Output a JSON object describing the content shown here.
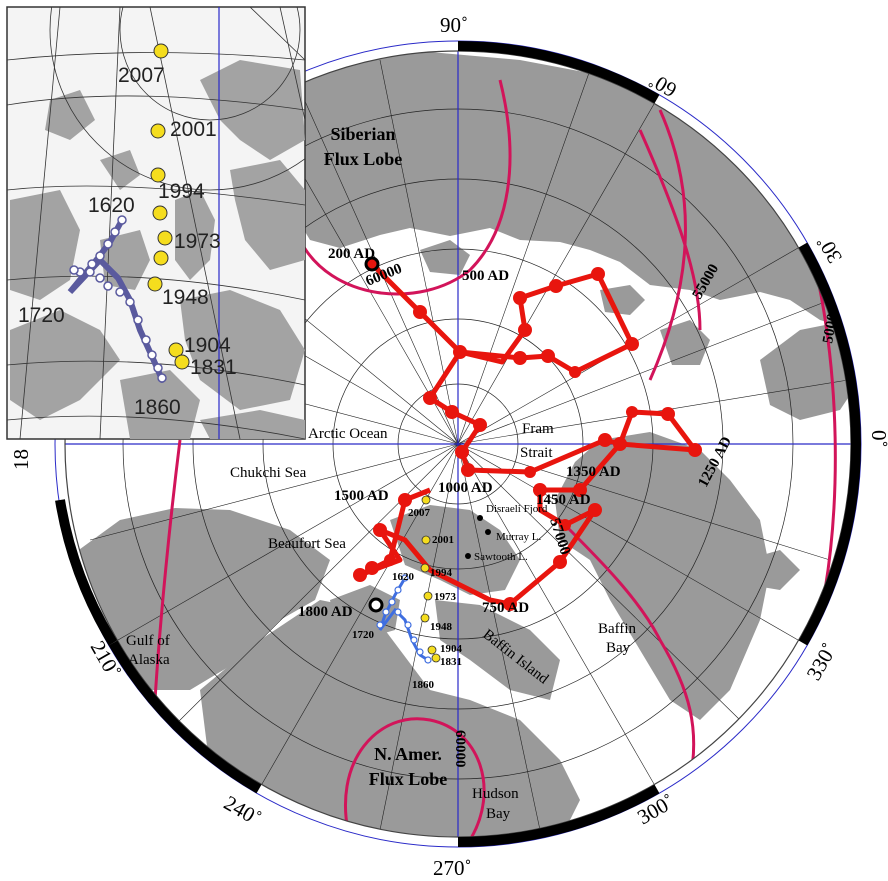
{
  "degree_labels": [
    {
      "text": "90˚"
    },
    {
      "text": "60˚"
    },
    {
      "text": "30˚"
    },
    {
      "text": "0˚"
    },
    {
      "text": "330˚"
    },
    {
      "text": "300˚"
    },
    {
      "text": "270˚"
    },
    {
      "text": "240˚"
    },
    {
      "text": "210˚"
    },
    {
      "text": "18"
    }
  ],
  "contour_labels": [
    {
      "text": "60000"
    },
    {
      "text": "55000"
    },
    {
      "text": "50000"
    },
    {
      "text": "57000"
    },
    {
      "text": "60000"
    }
  ],
  "flux_lobes": [
    {
      "line1": "Siberian",
      "line2": "Flux Lobe"
    },
    {
      "line1": "N. Amer.",
      "line2": "Flux Lobe"
    }
  ],
  "geo_labels": [
    {
      "text": "Arctic Ocean"
    },
    {
      "text": "Chukchi Sea"
    },
    {
      "text": "Beaufort Sea"
    },
    {
      "text": "Gulf of"
    },
    {
      "text": "Alaska"
    },
    {
      "text": "Fram"
    },
    {
      "text": "Strait"
    },
    {
      "text": "Baffin"
    },
    {
      "text": "Bay"
    },
    {
      "text": "Baffin Island"
    },
    {
      "text": "Hudson"
    },
    {
      "text": "Bay"
    }
  ],
  "sites": [
    {
      "name": "Disraeli Fjord"
    },
    {
      "name": "Murray L."
    },
    {
      "name": "Sawtooth L."
    }
  ],
  "paleo_years": [
    {
      "text": "200 AD"
    },
    {
      "text": "500 AD"
    },
    {
      "text": "1250 AD"
    },
    {
      "text": "1350 AD"
    },
    {
      "text": "1450 AD"
    },
    {
      "text": "1000 AD"
    },
    {
      "text": "1500 AD"
    },
    {
      "text": "750 AD"
    },
    {
      "text": "1800 AD"
    }
  ],
  "observed_years_main": [
    {
      "text": "2007"
    },
    {
      "text": "2001"
    },
    {
      "text": "1994"
    },
    {
      "text": "1973"
    },
    {
      "text": "1948"
    },
    {
      "text": "1904"
    },
    {
      "text": "1831"
    }
  ],
  "historic_years_main": [
    {
      "text": "1620"
    },
    {
      "text": "1720"
    },
    {
      "text": "1860"
    }
  ],
  "inset_years": [
    {
      "text": "2007"
    },
    {
      "text": "2001"
    },
    {
      "text": "1994"
    },
    {
      "text": "1973"
    },
    {
      "text": "1948"
    },
    {
      "text": "1904"
    },
    {
      "text": "1831"
    },
    {
      "text": "1620"
    },
    {
      "text": "1720"
    },
    {
      "text": "1860"
    }
  ],
  "colors": {
    "paleo_path": "#e8150e",
    "contour": "#d2145a",
    "observed_dot": "#f5dd1e",
    "historic_path_main": "#3f6ee0",
    "historic_path_inset": "#5a5a9e",
    "land": "#9a9a9a",
    "grid_blue": "#2a2ac8"
  }
}
